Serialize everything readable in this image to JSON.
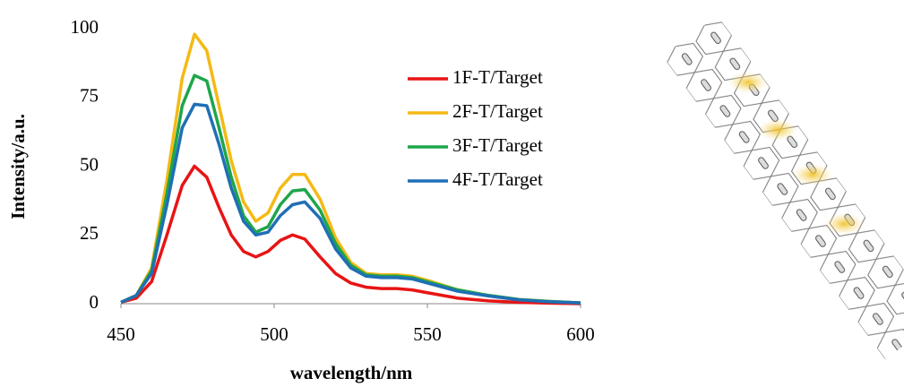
{
  "chart_data": {
    "type": "line",
    "x_label": "wavelength/nm",
    "y_label": "Intensity/a.u.",
    "x": [
      450,
      455,
      460,
      465,
      470,
      474,
      478,
      482,
      486,
      490,
      494,
      498,
      502,
      506,
      510,
      515,
      520,
      525,
      530,
      535,
      540,
      545,
      550,
      560,
      570,
      580,
      590,
      600
    ],
    "series": [
      {
        "name": "1F-T/Target",
        "color": "#e81414",
        "values": [
          0.5,
          2,
          8,
          25,
          43,
          50,
          46,
          35,
          25,
          19,
          17,
          19,
          23,
          25,
          23.5,
          17,
          11,
          7.5,
          6,
          5.5,
          5.5,
          5,
          4,
          2,
          1,
          0.5,
          0.2,
          0
        ]
      },
      {
        "name": "2F-T/Target",
        "color": "#f5b915",
        "values": [
          0.5,
          3,
          13,
          45,
          82,
          98,
          92,
          72,
          52,
          37,
          30,
          33,
          42,
          47,
          47,
          38,
          24,
          15,
          11,
          10.5,
          10.5,
          10,
          8.5,
          5,
          3,
          1.5,
          0.8,
          0.3
        ]
      },
      {
        "name": "3F-T/Target",
        "color": "#1ea64a",
        "values": [
          0.5,
          3,
          12,
          40,
          72,
          83,
          81,
          64,
          46,
          32,
          26,
          28,
          36,
          41,
          41.5,
          34,
          22,
          14,
          10.5,
          10,
          10,
          9.5,
          8,
          5,
          3,
          1.5,
          0.8,
          0.3
        ]
      },
      {
        "name": "4F-T/Target",
        "color": "#1f6fb5",
        "values": [
          0.5,
          3,
          11,
          36,
          64,
          72.5,
          72,
          58,
          42,
          30,
          25,
          26,
          32,
          36,
          37,
          31,
          20,
          13,
          10,
          9.5,
          9.5,
          9,
          7.5,
          4.5,
          2.8,
          1.4,
          0.7,
          0.3
        ]
      }
    ],
    "xlim": [
      450,
      600
    ],
    "xticks": [
      450,
      500,
      550,
      600
    ],
    "ylim": [
      0,
      100
    ],
    "yticks": [
      0,
      25,
      50,
      75,
      100
    ],
    "grid": false,
    "legend": "upper right"
  }
}
